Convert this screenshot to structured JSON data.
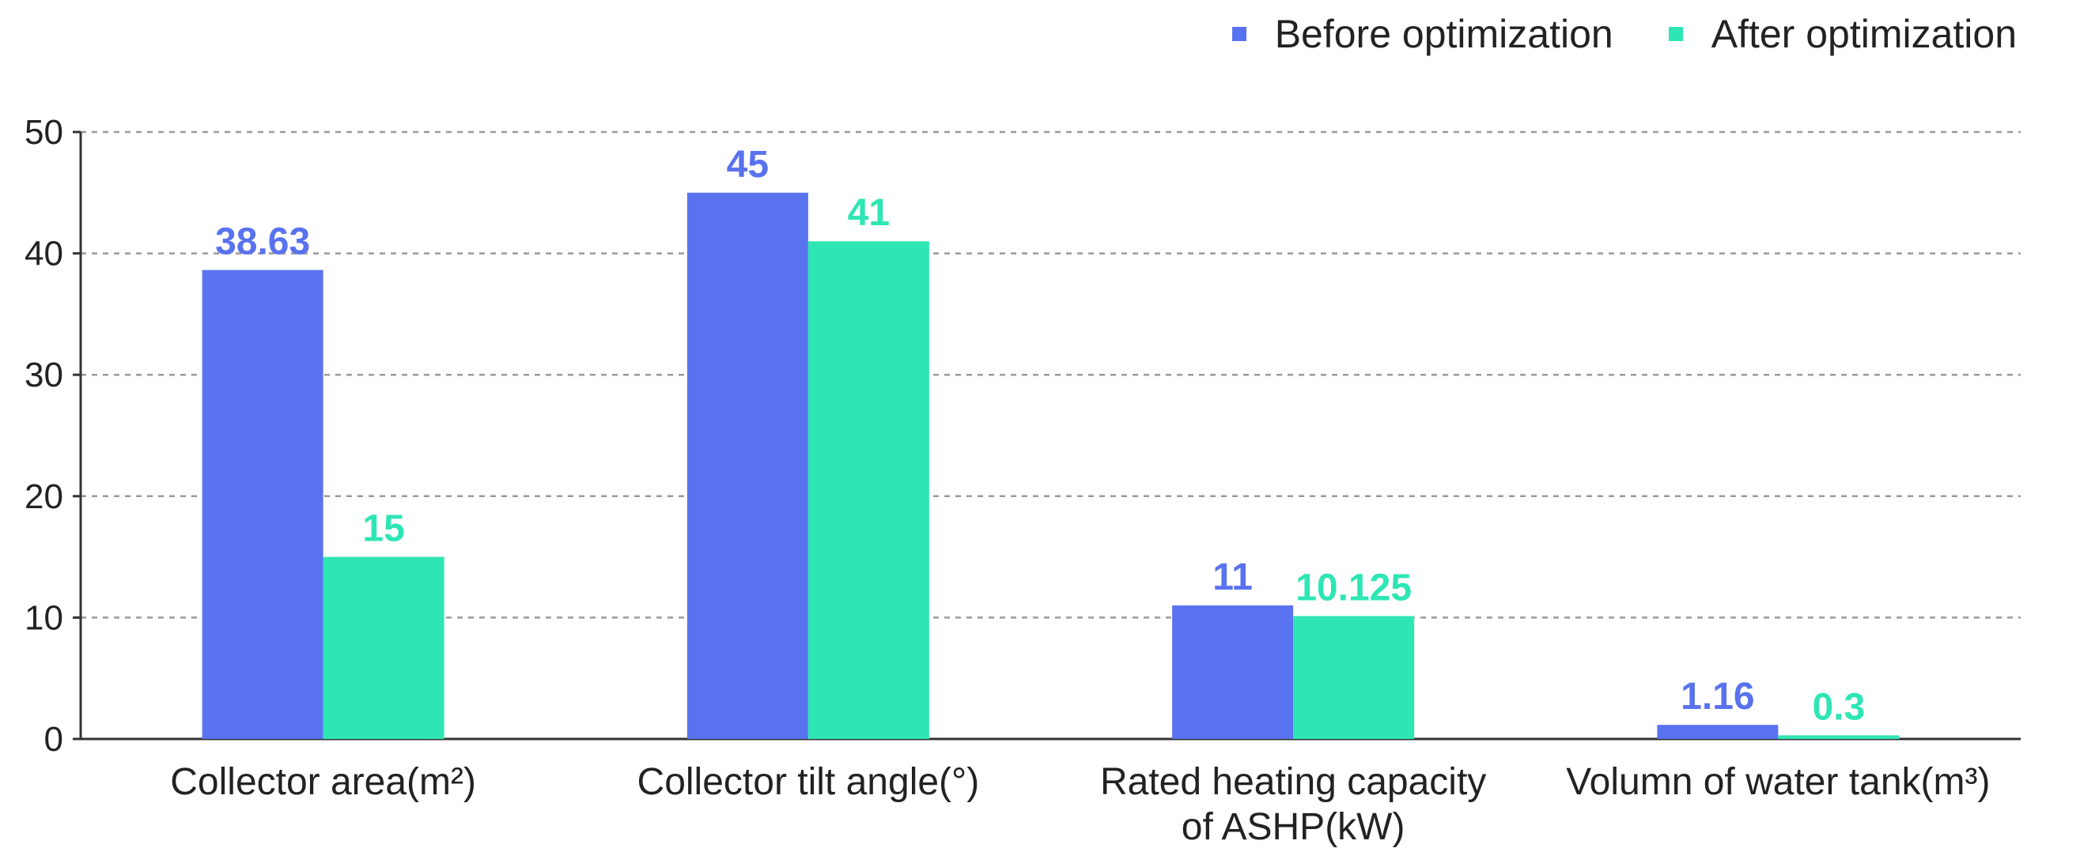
{
  "colors": {
    "before": "#5972EF",
    "after": "#2EE6B4",
    "grid": "#9a9a9a",
    "axis": "#333333",
    "text": "#222222"
  },
  "chart_data": {
    "type": "bar",
    "title": "",
    "xlabel": "",
    "ylabel": "",
    "ylim": [
      0,
      50
    ],
    "yticks": [
      "0",
      "10",
      "20",
      "30",
      "40",
      "50"
    ],
    "grid": true,
    "legend": "top-right",
    "categories": [
      [
        "Collector area(m²)"
      ],
      [
        "Collector tilt angle(°)"
      ],
      [
        "Rated heating capacity",
        "of ASHP(kW)"
      ],
      [
        "Volumn of water tank(m³)"
      ]
    ],
    "series": [
      {
        "name": "Before optimization",
        "values": [
          38.63,
          45,
          11,
          1.16
        ],
        "labels": [
          "38.63",
          "45",
          "11",
          "1.16"
        ]
      },
      {
        "name": "After optimization",
        "values": [
          15,
          41,
          10.125,
          0.3
        ],
        "labels": [
          "15",
          "41",
          "10.125",
          "0.3"
        ]
      }
    ]
  }
}
